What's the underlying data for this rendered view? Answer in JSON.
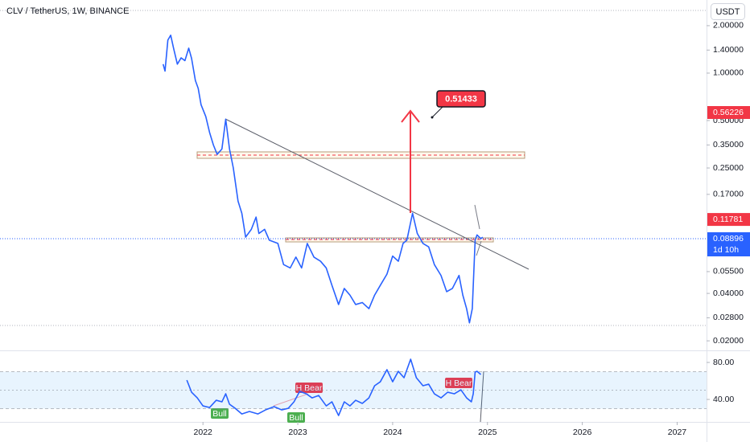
{
  "chart_data": [
    {
      "type": "line",
      "title": "CLV / TetherUS, 1W, BINANCE",
      "unit_button": "USDT",
      "color": "#2962ff",
      "log_scale": true,
      "x": [
        2021.58,
        2021.6,
        2021.63,
        2021.66,
        2021.69,
        2021.73,
        2021.77,
        2021.81,
        2021.85,
        2021.88,
        2021.92,
        2021.95,
        2021.98,
        2022.03,
        2022.07,
        2022.11,
        2022.15,
        2022.2,
        2022.24,
        2022.28,
        2022.32,
        2022.37,
        2022.41,
        2022.45,
        2022.51,
        2022.56,
        2022.59,
        2022.65,
        2022.7,
        2022.79,
        2022.85,
        2022.92,
        2022.98,
        2023.04,
        2023.1,
        2023.17,
        2023.24,
        2023.3,
        2023.36,
        2023.43,
        2023.49,
        2023.55,
        2023.61,
        2023.68,
        2023.75,
        2023.81,
        2023.87,
        2023.94,
        2024.0,
        2024.06,
        2024.11,
        2024.15,
        2024.21,
        2024.26,
        2024.32,
        2024.38,
        2024.44,
        2024.51,
        2024.57,
        2024.63,
        2024.7,
        2024.74,
        2024.78,
        2024.81,
        2024.84,
        2024.87,
        2024.89,
        2024.93,
        2024.95
      ],
      "values": [
        1.14,
        1.03,
        1.62,
        1.74,
        1.44,
        1.14,
        1.25,
        1.2,
        1.44,
        1.24,
        0.898,
        0.8,
        0.63,
        0.53,
        0.42,
        0.35,
        0.305,
        0.33,
        0.51,
        0.33,
        0.25,
        0.154,
        0.129,
        0.091,
        0.102,
        0.122,
        0.096,
        0.102,
        0.087,
        0.083,
        0.061,
        0.058,
        0.068,
        0.058,
        0.083,
        0.068,
        0.064,
        0.058,
        0.045,
        0.034,
        0.043,
        0.039,
        0.034,
        0.035,
        0.032,
        0.039,
        0.045,
        0.053,
        0.069,
        0.064,
        0.083,
        0.087,
        0.129,
        0.096,
        0.083,
        0.079,
        0.061,
        0.052,
        0.041,
        0.043,
        0.052,
        0.039,
        0.032,
        0.026,
        0.032,
        0.087,
        0.094,
        0.089,
        0.091
      ],
      "xlim": [
        2019.86,
        2027.31
      ],
      "ylim": [
        0.0176,
        2.91
      ],
      "yticks": [
        {
          "value": 2,
          "label": "2.00000"
        },
        {
          "value": 1.4,
          "label": "1.40000"
        },
        {
          "value": 1,
          "label": "1.00000"
        },
        {
          "value": 0.5,
          "label": "0.50000"
        },
        {
          "value": 0.35,
          "label": "0.35000"
        },
        {
          "value": 0.25,
          "label": "0.25000"
        },
        {
          "value": 0.17,
          "label": "0.17000"
        },
        {
          "value": 0.055,
          "label": "0.05500"
        },
        {
          "value": 0.04,
          "label": "0.04000"
        },
        {
          "value": 0.028,
          "label": "0.02800"
        },
        {
          "value": 0.02,
          "label": "0.02000"
        }
      ],
      "price_labels": [
        {
          "value": 0.56226,
          "color": "#f23645"
        },
        {
          "value": 0.11781,
          "color": "#f23645"
        },
        {
          "value": 0.08896,
          "color": "#2962ff",
          "countdown": "1d 10h"
        }
      ],
      "callout": 0.51433
    },
    {
      "type": "line",
      "color": "#2962ff",
      "x": [
        2021.83,
        2021.88,
        2021.94,
        2022.0,
        2022.07,
        2022.14,
        2022.2,
        2022.24,
        2022.28,
        2022.34,
        2022.41,
        2022.49,
        2022.58,
        2022.66,
        2022.75,
        2022.83,
        2022.9,
        2022.96,
        2023.02,
        2023.09,
        2023.15,
        2023.22,
        2023.3,
        2023.36,
        2023.43,
        2023.49,
        2023.55,
        2023.61,
        2023.68,
        2023.75,
        2023.81,
        2023.87,
        2023.94,
        2024.0,
        2024.06,
        2024.12,
        2024.19,
        2024.25,
        2024.32,
        2024.38,
        2024.44,
        2024.51,
        2024.58,
        2024.65,
        2024.72,
        2024.78,
        2024.83,
        2024.85,
        2024.87,
        2024.89,
        2024.93
      ],
      "values": [
        60.9,
        47.8,
        41.7,
        33,
        31.3,
        39.1,
        37.4,
        46.1,
        34.8,
        30.4,
        24.3,
        27,
        24.3,
        28.7,
        32.2,
        28.7,
        30.4,
        37.4,
        48.7,
        46.1,
        41.7,
        44.3,
        33,
        37.4,
        22.6,
        37.4,
        33,
        39.1,
        35.7,
        41.7,
        54.8,
        59.1,
        72.2,
        59.1,
        70.4,
        63.5,
        83.5,
        63.5,
        54.8,
        56.5,
        46.1,
        41.7,
        47.8,
        46.1,
        50.4,
        41.7,
        37.4,
        46.1,
        69.6,
        70.4,
        67
      ],
      "xlim": [
        2019.86,
        2027.31
      ],
      "ylim": [
        15.7,
        91.3
      ],
      "xticks": [
        2022,
        2023,
        2024,
        2025,
        2026,
        2027
      ],
      "yticks": [
        {
          "value": 80,
          "label": "80.00"
        },
        {
          "value": 40,
          "label": "40.00"
        }
      ],
      "band": [
        30,
        70
      ],
      "midline": 50,
      "annotations": [
        "Bull",
        "Bull",
        "H Bear",
        "H Bear"
      ]
    }
  ]
}
